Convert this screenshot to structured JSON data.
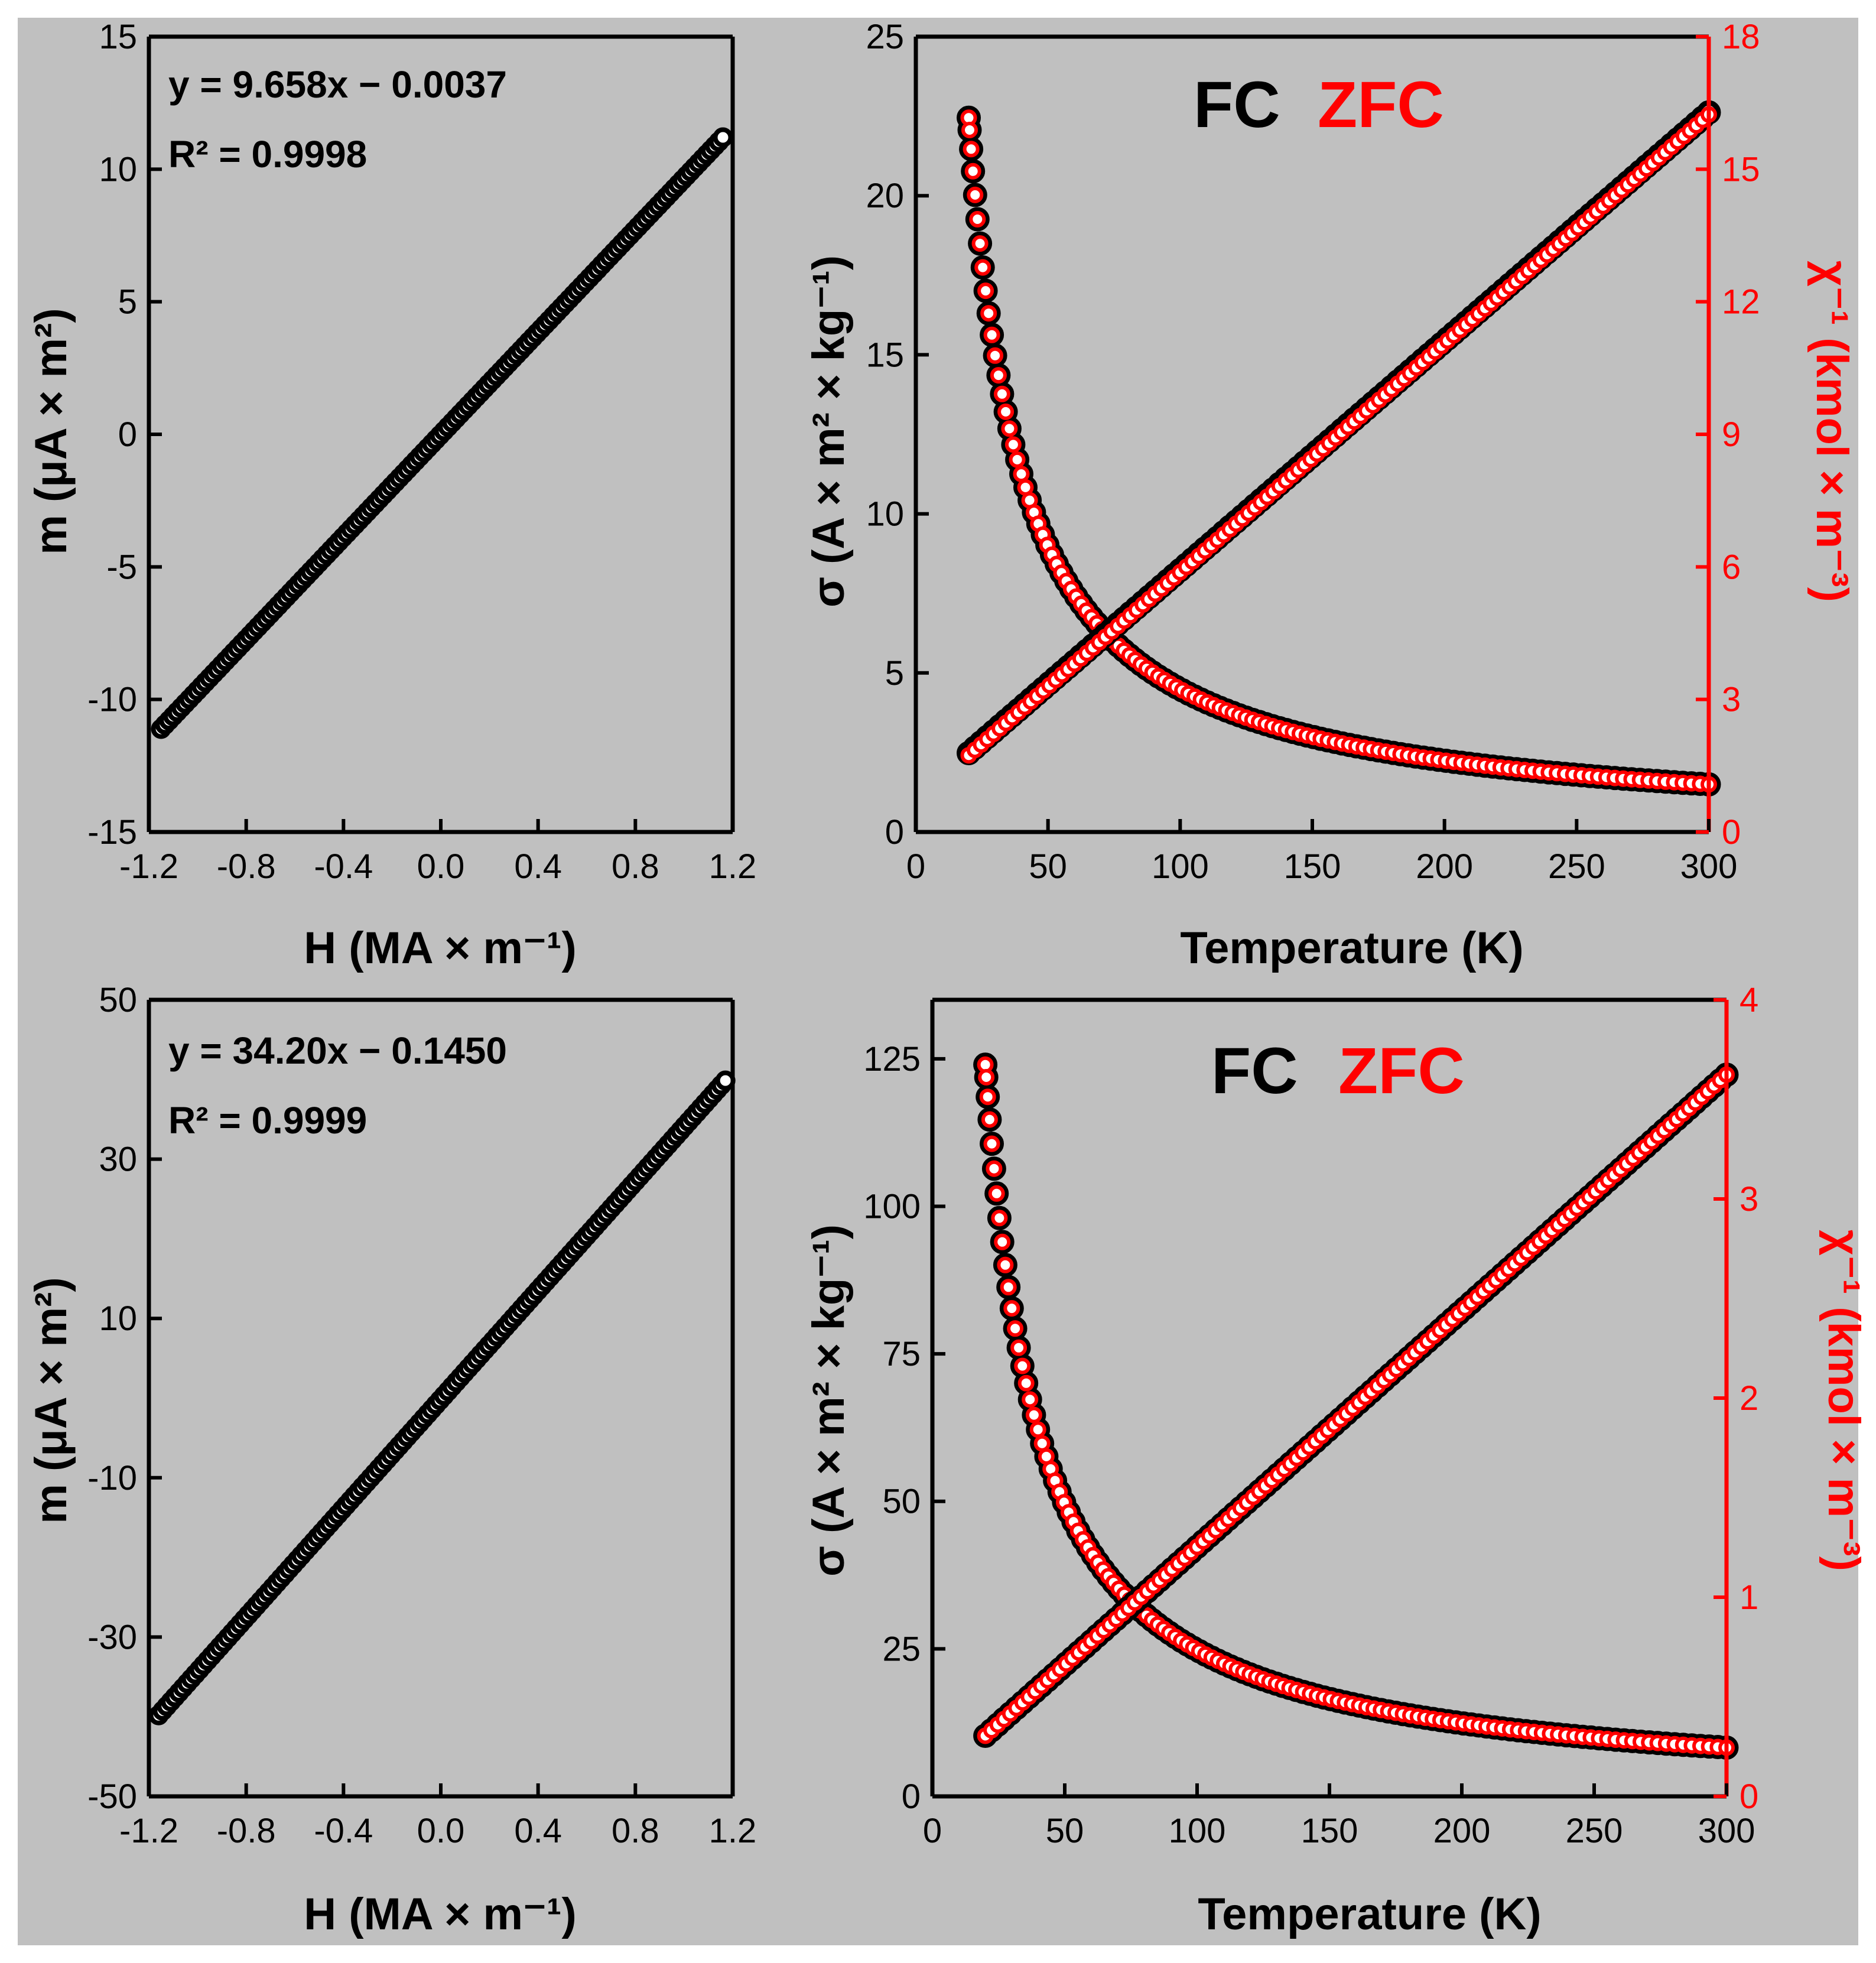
{
  "chart_data": [
    {
      "id": "p1",
      "type": "scatter",
      "xlabel": "H (MA × m⁻¹)",
      "ylabel": "m (μA × m²)",
      "xlim": [
        -1.2,
        1.2
      ],
      "ylim": [
        -15,
        15
      ],
      "xticks": [
        "-1.2",
        "-0.8",
        "-0.4",
        "0.0",
        "0.4",
        "0.8",
        "1.2"
      ],
      "yticks": [
        "-15",
        "-10",
        "-5",
        "0",
        "5",
        "10",
        "15"
      ],
      "fit": {
        "slope": 9.658,
        "intercept": -0.0037,
        "x_range": [
          -1.15,
          1.16
        ]
      },
      "annotation": {
        "equation": "y = 9.658x − 0.0037",
        "r2": "R² = 0.9998"
      }
    },
    {
      "id": "p2",
      "type": "scatter",
      "xlabel": "Temperature (K)",
      "ylabel": "σ (A × m² × kg⁻¹)",
      "ylabel_right": "χ⁻¹ (kmol × m⁻³)",
      "xlim": [
        0,
        300
      ],
      "ylim": [
        0,
        25
      ],
      "ylim_right": [
        0,
        18
      ],
      "xticks": [
        "0",
        "50",
        "100",
        "150",
        "200",
        "250",
        "300"
      ],
      "yticks": [
        "0",
        "5",
        "10",
        "15",
        "20",
        "25"
      ],
      "yticks_right": [
        "0",
        "3",
        "6",
        "9",
        "12",
        "15",
        "18"
      ],
      "legend": {
        "fc": "FC",
        "zfc": "ZFC"
      },
      "series": [
        {
          "name": "FC σ",
          "color": "#000000",
          "model": "curie",
          "C": 449,
          "x_range": [
            20,
            300
          ]
        },
        {
          "name": "ZFC σ",
          "color": "#ff0000",
          "model": "curie",
          "C": 449,
          "x_range": [
            20,
            300
          ]
        },
        {
          "name": "FC χ⁻¹",
          "color": "#000000",
          "model": "linear",
          "slope": 0.05178,
          "intercept": 0.75,
          "x_range": [
            20,
            300
          ]
        },
        {
          "name": "ZFC χ⁻¹",
          "color": "#ff0000",
          "model": "linear",
          "slope": 0.05179,
          "intercept": 0.7,
          "x_range": [
            20,
            300
          ]
        }
      ]
    },
    {
      "id": "p3",
      "type": "scatter",
      "xlabel": "H (MA × m⁻¹)",
      "ylabel": "m (μA × m²)",
      "xlim": [
        -1.2,
        1.2
      ],
      "ylim": [
        -50,
        50
      ],
      "xticks": [
        "-1.2",
        "-0.8",
        "-0.4",
        "0.0",
        "0.4",
        "0.8",
        "1.2"
      ],
      "yticks": [
        "-50",
        "-30",
        "-10",
        "10",
        "30",
        "50"
      ],
      "fit": {
        "slope": 34.2,
        "intercept": -0.145,
        "x_range": [
          -1.16,
          1.17
        ]
      },
      "annotation": {
        "equation": "y = 34.20x − 0.1450",
        "r2": "R² = 0.9999"
      }
    },
    {
      "id": "p4",
      "type": "scatter",
      "xlabel": "Temperature (K)",
      "ylabel": "σ (A × m² × kg⁻¹)",
      "ylabel_right": "χ⁻¹ (kmol × m⁻³)",
      "xlim": [
        0,
        300
      ],
      "ylim": [
        0,
        135
      ],
      "ylim_right": [
        0,
        4
      ],
      "xticks": [
        "0",
        "50",
        "100",
        "150",
        "200",
        "250",
        "300"
      ],
      "yticks": [
        "0",
        "25",
        "50",
        "75",
        "100",
        "125"
      ],
      "yticks_right": [
        "0",
        "1",
        "2",
        "3",
        "4"
      ],
      "legend": {
        "fc": "FC",
        "zfc": "ZFC"
      },
      "series": [
        {
          "name": "FC σ",
          "color": "#000000",
          "model": "curie",
          "C": 2480,
          "x_range": [
            20,
            300
          ]
        },
        {
          "name": "ZFC σ",
          "color": "#ff0000",
          "model": "curie",
          "C": 2480,
          "x_range": [
            20,
            300
          ]
        },
        {
          "name": "FC χ⁻¹",
          "color": "#000000",
          "model": "linear",
          "slope": 0.011856,
          "intercept": 0.0671,
          "x_range": [
            20,
            300
          ]
        },
        {
          "name": "ZFC χ⁻¹",
          "color": "#ff0000",
          "model": "linear",
          "slope": 0.011856,
          "intercept": 0.0671,
          "x_range": [
            20,
            300
          ]
        }
      ]
    }
  ]
}
